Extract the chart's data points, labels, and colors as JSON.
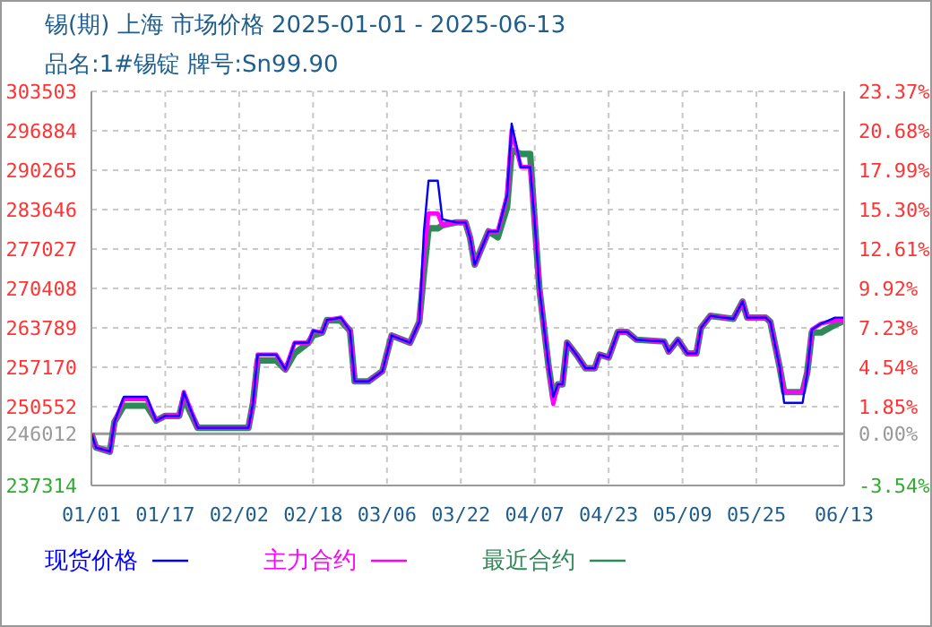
{
  "chart_data": {
    "type": "line",
    "title": "锡(期) 上海 市场价格 2025-01-01 - 2025-06-13",
    "subtitle": "品名:1#锡锭 牌号:Sn99.90",
    "x": [
      "2025-01-01",
      "2025-01-02",
      "2025-01-05",
      "2025-01-06",
      "2025-01-08",
      "2025-01-13",
      "2025-01-15",
      "2025-01-17",
      "2025-01-20",
      "2025-01-21",
      "2025-01-24",
      "2025-02-04",
      "2025-02-05",
      "2025-02-06",
      "2025-02-10",
      "2025-02-12",
      "2025-02-14",
      "2025-02-17",
      "2025-02-18",
      "2025-02-20",
      "2025-02-21",
      "2025-02-24",
      "2025-02-26",
      "2025-02-27",
      "2025-03-02",
      "2025-03-05",
      "2025-03-07",
      "2025-03-11",
      "2025-03-13",
      "2025-03-14",
      "2025-03-15",
      "2025-03-17",
      "2025-03-18",
      "2025-03-21",
      "2025-03-23",
      "2025-03-24",
      "2025-03-25",
      "2025-03-28",
      "2025-03-30",
      "2025-04-01",
      "2025-04-02",
      "2025-04-04",
      "2025-04-06",
      "2025-04-07",
      "2025-04-08",
      "2025-04-10",
      "2025-04-11",
      "2025-04-12",
      "2025-04-13",
      "2025-04-14",
      "2025-04-16",
      "2025-04-18",
      "2025-04-20",
      "2025-04-21",
      "2025-04-23",
      "2025-04-25",
      "2025-04-27",
      "2025-04-29",
      "2025-05-05",
      "2025-05-06",
      "2025-05-08",
      "2025-05-10",
      "2025-05-12",
      "2025-05-13",
      "2025-05-15",
      "2025-05-20",
      "2025-05-22",
      "2025-05-23",
      "2025-05-27",
      "2025-05-28",
      "2025-05-30",
      "2025-05-31",
      "2025-06-04",
      "2025-06-05",
      "2025-06-06",
      "2025-06-08",
      "2025-06-11",
      "2025-06-13"
    ],
    "series": [
      {
        "name": "现货价格",
        "color": "#0000ff",
        "values": [
          246000,
          243700,
          243000,
          248000,
          252200,
          252200,
          248200,
          249000,
          249000,
          253000,
          247000,
          247000,
          251200,
          259300,
          259300,
          256800,
          261300,
          261300,
          263300,
          263000,
          265100,
          265500,
          263300,
          254800,
          254800,
          256500,
          262500,
          261300,
          264800,
          280000,
          288500,
          288500,
          282000,
          281500,
          281500,
          278900,
          274400,
          280000,
          280000,
          286000,
          298100,
          290800,
          290800,
          281500,
          270400,
          257300,
          252200,
          254300,
          254300,
          261300,
          259300,
          257000,
          257000,
          259300,
          258800,
          263100,
          263100,
          261800,
          261500,
          259800,
          261800,
          259500,
          259500,
          263800,
          265800,
          265300,
          268200,
          265500,
          265500,
          264800,
          257300,
          251200,
          251200,
          256300,
          263500,
          264500,
          265500,
          265500
        ]
      },
      {
        "name": "主力合约",
        "color": "#ff00ff",
        "values": [
          246000,
          243700,
          243000,
          248000,
          251800,
          251800,
          248200,
          249000,
          249000,
          253000,
          247000,
          247000,
          251200,
          259300,
          259300,
          256800,
          261300,
          261300,
          263300,
          263000,
          265100,
          265500,
          263300,
          254800,
          254800,
          256500,
          262500,
          261300,
          264800,
          276000,
          283000,
          283000,
          281000,
          281500,
          281500,
          278900,
          274400,
          280000,
          280000,
          286000,
          297000,
          290800,
          290800,
          281500,
          270400,
          257300,
          251000,
          254300,
          254300,
          261300,
          259300,
          257000,
          257000,
          259300,
          258800,
          263100,
          263100,
          261800,
          261500,
          259800,
          261800,
          259500,
          259500,
          263800,
          265800,
          265300,
          268200,
          265500,
          265500,
          264800,
          257300,
          253000,
          253000,
          256300,
          263500,
          264500,
          265000,
          265000
        ]
      },
      {
        "name": "最近合约",
        "color": "#2e8b57",
        "values": [
          246000,
          243700,
          243000,
          248000,
          250700,
          250700,
          248200,
          249000,
          249000,
          252000,
          247000,
          247000,
          251200,
          258300,
          258300,
          256800,
          259500,
          261300,
          262500,
          263000,
          265100,
          265000,
          263300,
          254800,
          254800,
          256500,
          262500,
          261300,
          264800,
          273000,
          280500,
          280500,
          281000,
          281500,
          281500,
          278900,
          274400,
          280000,
          279000,
          284000,
          293600,
          293000,
          293000,
          281500,
          270400,
          257300,
          252000,
          254300,
          254300,
          261300,
          259300,
          257000,
          257000,
          259300,
          258800,
          263100,
          263100,
          261800,
          261500,
          259800,
          261800,
          259500,
          259500,
          263800,
          265800,
          265300,
          268200,
          265500,
          265500,
          264800,
          257300,
          253000,
          253000,
          256300,
          263000,
          263000,
          264300,
          265000
        ]
      }
    ],
    "xlim": [
      "2025-01-01",
      "2025-06-13"
    ],
    "xticks": [
      {
        "value": "2025-01-01",
        "label": "01/01"
      },
      {
        "value": "2025-01-17",
        "label": "01/17"
      },
      {
        "value": "2025-02-02",
        "label": "02/02"
      },
      {
        "value": "2025-02-18",
        "label": "02/18"
      },
      {
        "value": "2025-03-06",
        "label": "03/06"
      },
      {
        "value": "2025-03-22",
        "label": "03/22"
      },
      {
        "value": "2025-04-07",
        "label": "04/07"
      },
      {
        "value": "2025-04-23",
        "label": "04/23"
      },
      {
        "value": "2025-05-09",
        "label": "05/09"
      },
      {
        "value": "2025-05-25",
        "label": "05/25"
      },
      {
        "value": "2025-06-13",
        "label": "06/13"
      }
    ],
    "ylim": [
      237314,
      303503
    ],
    "yticks": [
      237314,
      {
        "value": 243933,
        "label": null
      },
      246012,
      250552,
      257170,
      263789,
      270408,
      277027,
      283646,
      290265,
      296884,
      303503
    ],
    "y2lim": [
      -3.54,
      23.37
    ],
    "y2ticks": [
      {
        "value": -3.54,
        "label": "-3.54%"
      },
      {
        "value": 0,
        "label": "0.00%"
      },
      {
        "value": 1.85,
        "label": "1.85%"
      },
      {
        "value": 4.54,
        "label": "4.54%"
      },
      {
        "value": 7.23,
        "label": "7.23%"
      },
      {
        "value": 9.92,
        "label": "9.92%"
      },
      {
        "value": 12.61,
        "label": "12.61%"
      },
      {
        "value": 15.3,
        "label": "15.30%"
      },
      {
        "value": 17.99,
        "label": "17.99%"
      },
      {
        "value": 20.68,
        "label": "20.68%"
      },
      {
        "value": 23.37,
        "label": "23.37%"
      }
    ],
    "ref_lines": [
      {
        "axis": "y",
        "value": 246012,
        "color": "#999999"
      }
    ],
    "grid": true,
    "legend": "bottom",
    "line_style": "solid",
    "marker": "none"
  }
}
